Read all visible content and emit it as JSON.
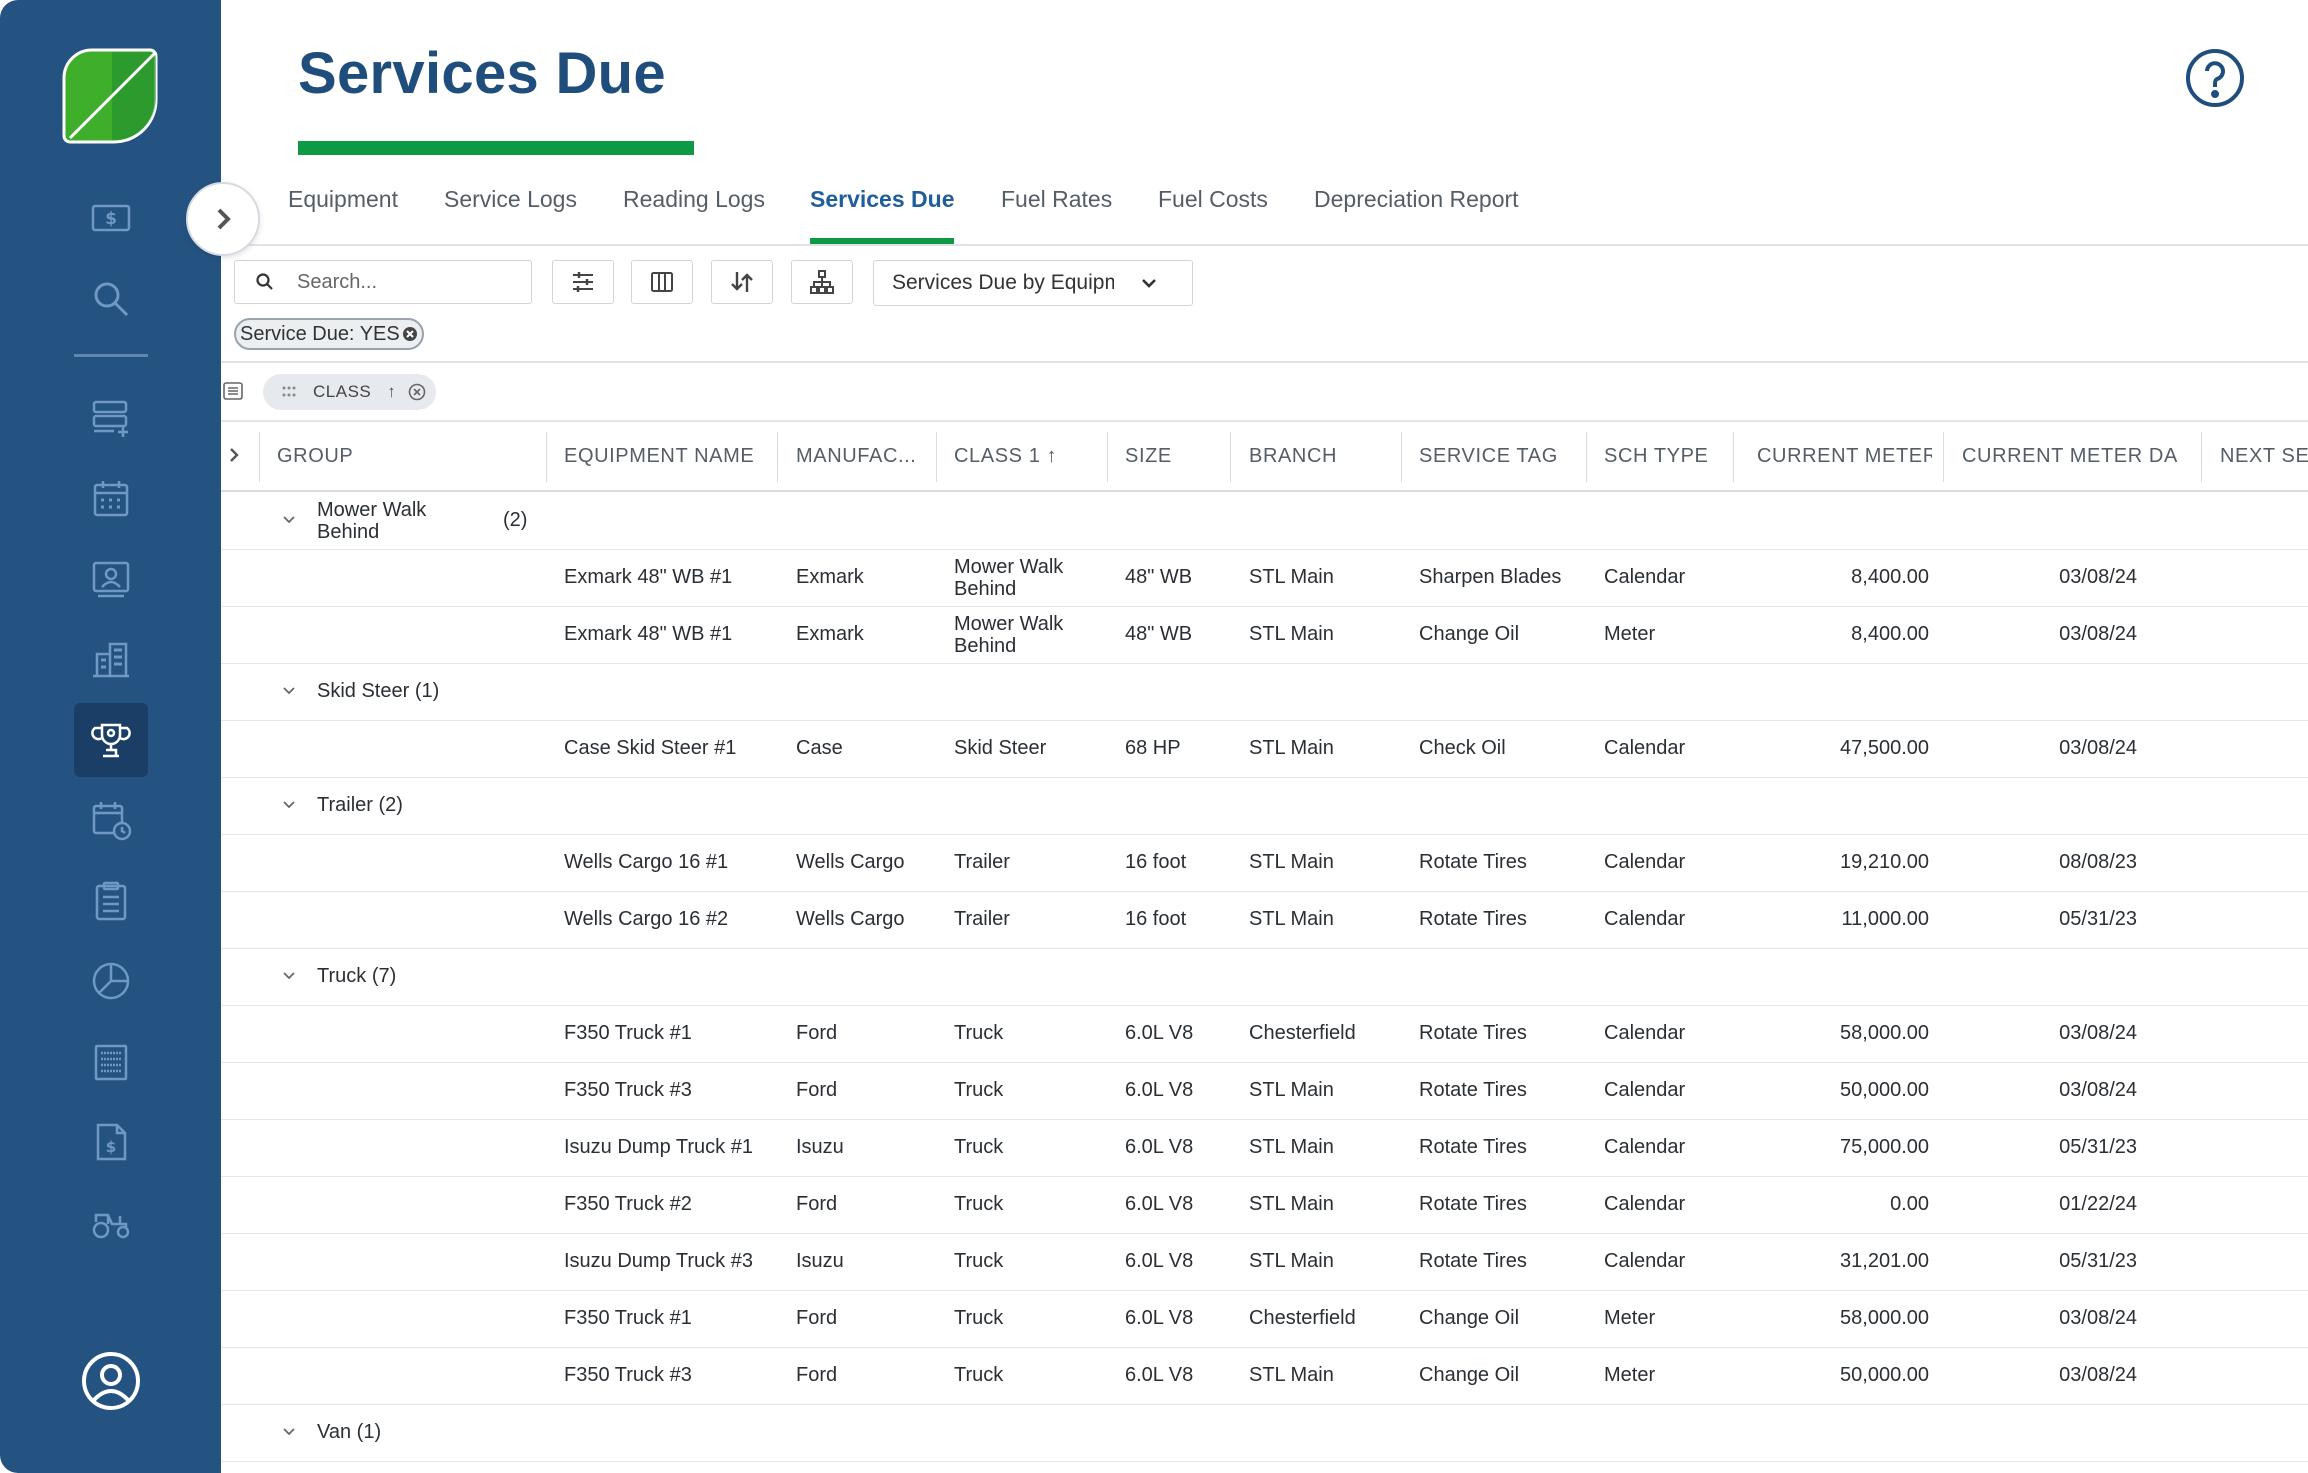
{
  "sidebar": {
    "items": [
      {
        "icon": "dollar-card-icon"
      },
      {
        "icon": "search-icon"
      },
      {
        "icon": "add-list-icon"
      },
      {
        "icon": "calendar-icon"
      },
      {
        "icon": "employee-badge-icon"
      },
      {
        "icon": "building-icon"
      },
      {
        "icon": "trophy-icon",
        "active": true
      },
      {
        "icon": "calendar-clock-icon"
      },
      {
        "icon": "clipboard-icon"
      },
      {
        "icon": "pie-chart-icon"
      },
      {
        "icon": "report-icon"
      },
      {
        "icon": "invoice-icon"
      },
      {
        "icon": "tractor-icon"
      }
    ],
    "user_icon": "user-circle-icon"
  },
  "header": {
    "title": "Services Due",
    "help_icon": "help-icon"
  },
  "tabs": [
    {
      "label": "Equipment"
    },
    {
      "label": "Service Logs"
    },
    {
      "label": "Reading Logs"
    },
    {
      "label": "Services Due",
      "active": true
    },
    {
      "label": "Fuel Rates"
    },
    {
      "label": "Fuel Costs"
    },
    {
      "label": "Depreciation Report"
    }
  ],
  "toolbar": {
    "search_placeholder": "Search...",
    "view_select": "Services Due by Equipm",
    "filter_chip": "Service Due: YES",
    "group_chip": "CLASS",
    "group_chip_arrow": "↑"
  },
  "table": {
    "columns": [
      "GROUP",
      "EQUIPMENT NAME",
      "MANUFAC...",
      "CLASS 1 ↑",
      "SIZE",
      "BRANCH",
      "SERVICE TAG",
      "SCH TYPE",
      "CURRENT METER",
      "CURRENT METER DA...",
      "NEXT SER"
    ],
    "groups": [
      {
        "name": "Mower Walk Behind",
        "count": "(2)",
        "rows": [
          {
            "name": "Exmark 48\" WB #1",
            "manufacturer": "Exmark",
            "class": "Mower Walk Behind",
            "size": "48\" WB",
            "branch": "STL Main",
            "tag": "Sharpen Blades",
            "sch": "Calendar",
            "meter": "8,400.00",
            "date": "03/08/24"
          },
          {
            "name": "Exmark 48\" WB #1",
            "manufacturer": "Exmark",
            "class": "Mower Walk Behind",
            "size": "48\" WB",
            "branch": "STL Main",
            "tag": "Change Oil",
            "sch": "Meter",
            "meter": "8,400.00",
            "date": "03/08/24"
          }
        ]
      },
      {
        "name": "Skid Steer",
        "count": "(1)",
        "rows": [
          {
            "name": "Case Skid Steer #1",
            "manufacturer": "Case",
            "class": "Skid Steer",
            "size": "68 HP",
            "branch": "STL Main",
            "tag": "Check Oil",
            "sch": "Calendar",
            "meter": "47,500.00",
            "date": "03/08/24"
          }
        ]
      },
      {
        "name": "Trailer",
        "count": "(2)",
        "rows": [
          {
            "name": "Wells Cargo 16 #1",
            "manufacturer": "Wells Cargo",
            "class": "Trailer",
            "size": "16 foot",
            "branch": "STL Main",
            "tag": "Rotate Tires",
            "sch": "Calendar",
            "meter": "19,210.00",
            "date": "08/08/23"
          },
          {
            "name": "Wells Cargo 16 #2",
            "manufacturer": "Wells Cargo",
            "class": "Trailer",
            "size": "16 foot",
            "branch": "STL Main",
            "tag": "Rotate Tires",
            "sch": "Calendar",
            "meter": "11,000.00",
            "date": "05/31/23"
          }
        ]
      },
      {
        "name": "Truck",
        "count": "(7)",
        "rows": [
          {
            "name": "F350 Truck #1",
            "manufacturer": "Ford",
            "class": "Truck",
            "size": "6.0L V8",
            "branch": "Chesterfield",
            "tag": "Rotate Tires",
            "sch": "Calendar",
            "meter": "58,000.00",
            "date": "03/08/24"
          },
          {
            "name": "F350 Truck #3",
            "manufacturer": "Ford",
            "class": "Truck",
            "size": "6.0L V8",
            "branch": "STL Main",
            "tag": "Rotate Tires",
            "sch": "Calendar",
            "meter": "50,000.00",
            "date": "03/08/24"
          },
          {
            "name": "Isuzu Dump Truck #1",
            "manufacturer": "Isuzu",
            "class": "Truck",
            "size": "6.0L V8",
            "branch": "STL Main",
            "tag": "Rotate Tires",
            "sch": "Calendar",
            "meter": "75,000.00",
            "date": "05/31/23"
          },
          {
            "name": "F350 Truck #2",
            "manufacturer": "Ford",
            "class": "Truck",
            "size": "6.0L V8",
            "branch": "STL Main",
            "tag": "Rotate Tires",
            "sch": "Calendar",
            "meter": "0.00",
            "date": "01/22/24"
          },
          {
            "name": "Isuzu Dump Truck #3",
            "manufacturer": "Isuzu",
            "class": "Truck",
            "size": "6.0L V8",
            "branch": "STL Main",
            "tag": "Rotate Tires",
            "sch": "Calendar",
            "meter": "31,201.00",
            "date": "05/31/23"
          },
          {
            "name": "F350 Truck #1",
            "manufacturer": "Ford",
            "class": "Truck",
            "size": "6.0L V8",
            "branch": "Chesterfield",
            "tag": "Change Oil",
            "sch": "Meter",
            "meter": "58,000.00",
            "date": "03/08/24"
          },
          {
            "name": "F350 Truck #3",
            "manufacturer": "Ford",
            "class": "Truck",
            "size": "6.0L V8",
            "branch": "STL Main",
            "tag": "Change Oil",
            "sch": "Meter",
            "meter": "50,000.00",
            "date": "03/08/24"
          }
        ]
      },
      {
        "name": "Van",
        "count": "(1)",
        "rows": []
      }
    ]
  },
  "colors": {
    "sidebar": "#255381",
    "sidebar_active": "#1b3e66",
    "title": "#1f4e7d",
    "accent_green": "#0e9a45",
    "active_tab": "#1f5e9a"
  }
}
